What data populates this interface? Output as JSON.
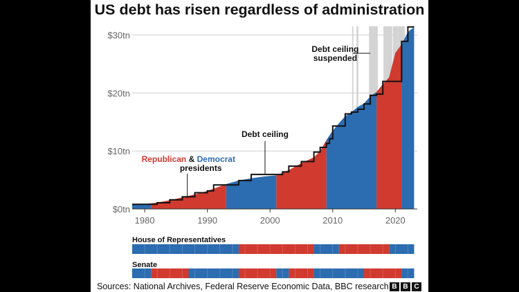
{
  "chart_data": {
    "type": "area",
    "title": "US debt has risen regardless of administration",
    "xlabel": "",
    "ylabel": "",
    "xlim": [
      1978,
      2023.5
    ],
    "ylim": [
      0,
      31.5
    ],
    "x_ticks": [
      1980,
      1990,
      2000,
      2010,
      2020
    ],
    "x_tick_labels": [
      "1980",
      "1990",
      "2000",
      "2010",
      "2020"
    ],
    "y_ticks": [
      0,
      10,
      20,
      30
    ],
    "y_tick_labels": [
      "$0tn",
      "$10tn",
      "$20tn",
      "$30tn"
    ],
    "grid": "horizontal",
    "colors": {
      "republican": "#d03a2f",
      "democrat": "#2c6cb0",
      "suspended": "#d4d4d4",
      "ceiling": "#111111"
    },
    "debt_series": {
      "name": "US debt",
      "points": [
        [
          1978,
          0.74
        ],
        [
          1980,
          0.85
        ],
        [
          1982,
          1.1
        ],
        [
          1984,
          1.5
        ],
        [
          1986,
          2.0
        ],
        [
          1988,
          2.5
        ],
        [
          1990,
          3.1
        ],
        [
          1992,
          3.9
        ],
        [
          1993,
          4.3
        ],
        [
          1995,
          4.9
        ],
        [
          1997,
          5.3
        ],
        [
          1999,
          5.6
        ],
        [
          2001,
          5.8
        ],
        [
          2003,
          6.7
        ],
        [
          2005,
          7.9
        ],
        [
          2007,
          8.9
        ],
        [
          2008,
          10.0
        ],
        [
          2009,
          11.9
        ],
        [
          2010,
          13.5
        ],
        [
          2011,
          14.8
        ],
        [
          2012,
          16.0
        ],
        [
          2013,
          16.7
        ],
        [
          2014,
          17.6
        ],
        [
          2015,
          18.2
        ],
        [
          2016,
          19.4
        ],
        [
          2017,
          20.2
        ],
        [
          2018,
          21.5
        ],
        [
          2019,
          22.7
        ],
        [
          2020,
          26.9
        ],
        [
          2021,
          28.4
        ],
        [
          2022,
          30.5
        ],
        [
          2023,
          31.4
        ]
      ]
    },
    "presidencies": [
      {
        "party": "D",
        "start": 1978,
        "end": 1981
      },
      {
        "party": "R",
        "start": 1981,
        "end": 1993
      },
      {
        "party": "D",
        "start": 1993,
        "end": 2001
      },
      {
        "party": "R",
        "start": 2001,
        "end": 2009
      },
      {
        "party": "D",
        "start": 2009,
        "end": 2017
      },
      {
        "party": "R",
        "start": 2017,
        "end": 2021
      },
      {
        "party": "D",
        "start": 2021,
        "end": 2023
      }
    ],
    "presidency_regions": [
      {
        "party": "D",
        "start": 1978,
        "end": 1981
      },
      {
        "party": "R",
        "start": 1981,
        "end": 1993
      },
      {
        "party": "D",
        "start": 1993,
        "end": 2001
      },
      {
        "party": "R",
        "start": 2001,
        "end": 2009
      },
      {
        "party": "D",
        "start": 2009,
        "end": 2017
      },
      {
        "party": "R",
        "start": 2017,
        "end": 2021
      },
      {
        "party": "D",
        "start": 2021,
        "end": 2023
      }
    ],
    "debt_ceiling": [
      [
        1978,
        0.8
      ],
      [
        1982,
        1.08
      ],
      [
        1984,
        1.58
      ],
      [
        1986,
        2.11
      ],
      [
        1988,
        2.8
      ],
      [
        1990,
        3.12
      ],
      [
        1991,
        4.15
      ],
      [
        1995,
        4.9
      ],
      [
        1997,
        5.95
      ],
      [
        2002,
        6.4
      ],
      [
        2003,
        7.38
      ],
      [
        2005,
        8.18
      ],
      [
        2007,
        9.82
      ],
      [
        2008,
        10.62
      ],
      [
        2009,
        11.3
      ],
      [
        2009.5,
        12.1
      ],
      [
        2010,
        14.3
      ],
      [
        2012,
        16.4
      ],
      [
        2013,
        16.7
      ],
      [
        2014,
        17.2
      ],
      [
        2015,
        18.1
      ],
      [
        2016,
        19.6
      ],
      [
        2017,
        19.8
      ],
      [
        2018,
        22.0
      ],
      [
        2019,
        22.0
      ],
      [
        2021,
        28.9
      ],
      [
        2022,
        31.4
      ],
      [
        2023,
        31.4
      ]
    ],
    "suspension_periods": [
      [
        2013.1,
        2013.3
      ],
      [
        2013.8,
        2014.1
      ],
      [
        2015.8,
        2017.2
      ],
      [
        2018.1,
        2019.5
      ],
      [
        2019.6,
        2021.5
      ]
    ],
    "annotations": {
      "ceiling_label": "Debt ceiling",
      "suspended_label_line1": "Debt ceiling",
      "suspended_label_line2": "suspended",
      "parties_label_republican": "Republican",
      "parties_label_amp": " & ",
      "parties_label_democrat": "Democrat",
      "parties_label_line2": "presidents"
    },
    "house_bar": {
      "label": "House of Representatives",
      "segments": [
        {
          "party": "D",
          "start": 1978,
          "end": 1995
        },
        {
          "party": "R",
          "start": 1995,
          "end": 2007
        },
        {
          "party": "D",
          "start": 2007,
          "end": 2011
        },
        {
          "party": "R",
          "start": 2011,
          "end": 2019
        },
        {
          "party": "D",
          "start": 2019,
          "end": 2023
        }
      ]
    },
    "senate_bar": {
      "label": "Senate",
      "segments": [
        {
          "party": "D",
          "start": 1978,
          "end": 1981
        },
        {
          "party": "R",
          "start": 1981,
          "end": 1987
        },
        {
          "party": "D",
          "start": 1987,
          "end": 1995
        },
        {
          "party": "R",
          "start": 1995,
          "end": 2001
        },
        {
          "party": "D",
          "start": 2001,
          "end": 2003
        },
        {
          "party": "R",
          "start": 2003,
          "end": 2007
        },
        {
          "party": "D",
          "start": 2007,
          "end": 2015
        },
        {
          "party": "R",
          "start": 2015,
          "end": 2021
        },
        {
          "party": "D",
          "start": 2021,
          "end": 2023
        }
      ]
    }
  },
  "footer": {
    "source": "Sources: National Archives, Federal Reserve Economic Data, BBC research",
    "logo": [
      "B",
      "B",
      "C"
    ]
  }
}
